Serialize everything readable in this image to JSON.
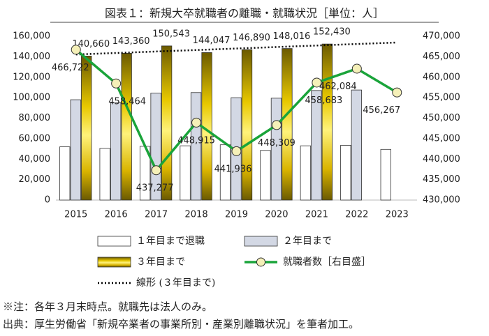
{
  "chart_data": {
    "type": "bar-line",
    "title": "図表１：新規大卒就職者の離職・就職状況［単位：人］",
    "categories": [
      "2015",
      "2016",
      "2017",
      "2018",
      "2019",
      "2020",
      "2021",
      "2022",
      "2023"
    ],
    "series": [
      {
        "name": "１年目まで退職",
        "type": "bar",
        "color": "#ffffff",
        "values": [
          52000,
          50500,
          52500,
          53000,
          54000,
          48500,
          53000,
          53500,
          49500
        ]
      },
      {
        "name": "２年目まで",
        "type": "bar",
        "color": "#d3d8e4",
        "values": [
          98000,
          95000,
          104500,
          105000,
          100000,
          99500,
          107000,
          107500,
          null
        ]
      },
      {
        "name": "３年目まで",
        "type": "bar",
        "color": "#e6c200",
        "values": [
          140660,
          143360,
          150543,
          144047,
          146890,
          148016,
          152430,
          null,
          null
        ],
        "value_labels": [
          "140,660",
          "143,360",
          "150,543",
          "144,047",
          "146,890",
          "148,016",
          "152,430",
          null,
          null
        ]
      },
      {
        "name": "就職者数［右目盛］",
        "type": "line",
        "axis": "y2",
        "color": "#1aa43a",
        "marker_color": "#f5f0b8",
        "values": [
          466722,
          458464,
          437277,
          448915,
          441936,
          448309,
          458683,
          462084,
          456267
        ],
        "value_labels": [
          "466,722",
          "458,464",
          "437,277",
          "448,915",
          "441,936",
          "448,309",
          "458,683",
          "462,084",
          "456,267"
        ]
      }
    ],
    "trendline": {
      "name": "線形 (３年目まで)",
      "of": "３年目まで",
      "color": "#000000",
      "style": "dotted"
    },
    "ylim": [
      0,
      160000
    ],
    "yticks": [
      0,
      {
        "value": 20000,
        "label": "20,000"
      },
      {
        "value": 40000,
        "label": "40,000"
      },
      {
        "value": 60000,
        "label": "60,000"
      },
      {
        "value": 80000,
        "label": "80,000"
      },
      {
        "value": 100000,
        "label": "100,000"
      },
      {
        "value": 120000,
        "label": "120,000"
      },
      {
        "value": 140000,
        "label": "140,000"
      },
      {
        "value": 160000,
        "label": "160,000"
      }
    ],
    "y2lim": [
      430000,
      470000
    ],
    "y2ticks": [
      {
        "value": 430000,
        "label": "430,000"
      },
      {
        "value": 435000,
        "label": "435,000"
      },
      {
        "value": 440000,
        "label": "440,000"
      },
      {
        "value": 445000,
        "label": "445,000"
      },
      {
        "value": 450000,
        "label": "450,000"
      },
      {
        "value": 455000,
        "label": "455,000"
      },
      {
        "value": 460000,
        "label": "460,000"
      },
      {
        "value": 465000,
        "label": "465,000"
      },
      {
        "value": 470000,
        "label": "470,000"
      }
    ],
    "notes": [
      "※注：各年３月末時点。就職先は法人のみ。",
      "出典：厚生労働省「新規卒業者の事業所別・産業別離職状況」を筆者加工。"
    ]
  }
}
